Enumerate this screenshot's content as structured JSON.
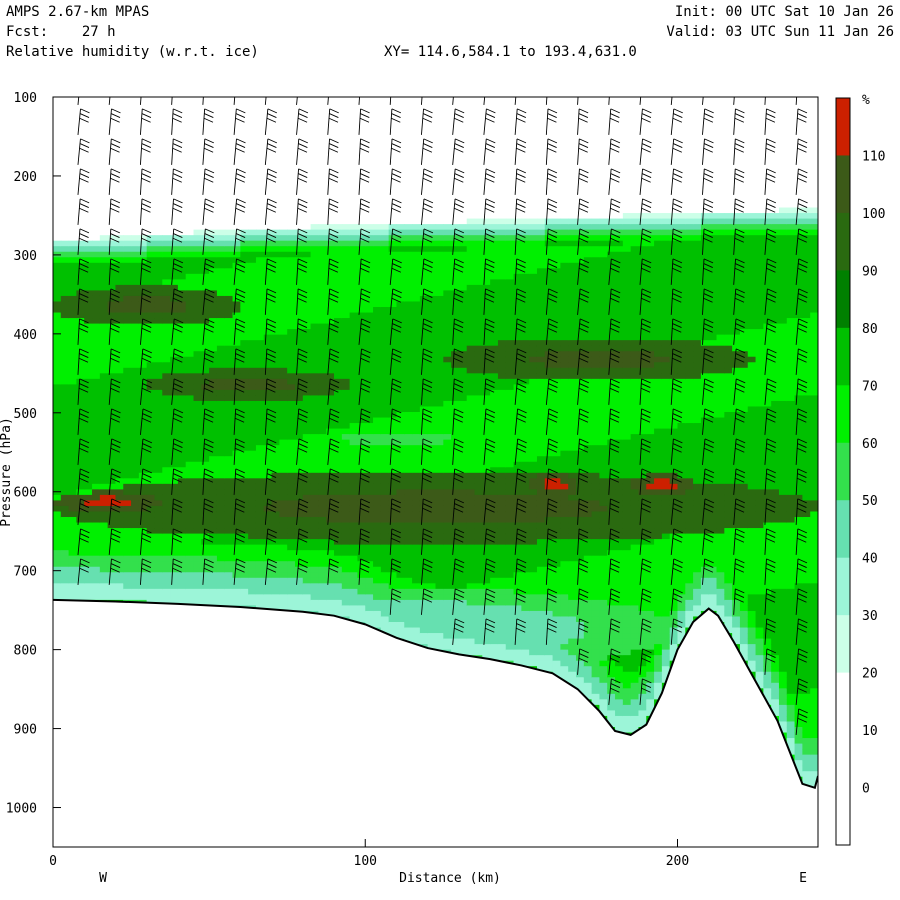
{
  "header": {
    "model": "AMPS 2.67-km MPAS",
    "forecast": "Fcst:    27 h",
    "field": "Relative humidity (w.r.t. ice)",
    "xy_range": "XY= 114.6,584.1 to 193.4,631.0",
    "init": "Init: 00 UTC Sat 10 Jan 26",
    "valid": "Valid: 03 UTC Sun 11 Jan 26"
  },
  "chart_data": {
    "type": "heatmap",
    "title": "Relative humidity (w.r.t. ice)",
    "xlabel": "Distance (km)",
    "ylabel": "Pressure (hPa)",
    "xlim": [
      0,
      245
    ],
    "ylim": [
      1050,
      100
    ],
    "x_ticks": [
      0,
      100,
      200
    ],
    "y_ticks": [
      100,
      200,
      300,
      400,
      500,
      600,
      700,
      800,
      900,
      1000
    ],
    "x_end_labels": {
      "left": "W",
      "right": "E"
    },
    "colorbar": {
      "unit": "%",
      "levels": [
        0,
        10,
        20,
        30,
        40,
        50,
        60,
        70,
        80,
        90,
        100,
        110
      ],
      "colors": [
        "#ffffff",
        "#ffffff",
        "#ffffff",
        "#ccffe8",
        "#9cf5d8",
        "#66e0b0",
        "#33e04c",
        "#00f000",
        "#00c000",
        "#008000",
        "#2a6a10",
        "#3c5a18",
        "#cc2000"
      ]
    },
    "terrain": [
      [
        0,
        737
      ],
      [
        20,
        739
      ],
      [
        40,
        742
      ],
      [
        60,
        746
      ],
      [
        80,
        752
      ],
      [
        90,
        757
      ],
      [
        100,
        768
      ],
      [
        110,
        785
      ],
      [
        120,
        798
      ],
      [
        130,
        806
      ],
      [
        140,
        812
      ],
      [
        150,
        820
      ],
      [
        160,
        830
      ],
      [
        168,
        850
      ],
      [
        175,
        878
      ],
      [
        180,
        903
      ],
      [
        185,
        908
      ],
      [
        190,
        895
      ],
      [
        195,
        855
      ],
      [
        200,
        800
      ],
      [
        205,
        765
      ],
      [
        210,
        748
      ],
      [
        213,
        757
      ],
      [
        218,
        790
      ],
      [
        225,
        840
      ],
      [
        232,
        890
      ],
      [
        237,
        940
      ],
      [
        240,
        970
      ],
      [
        244,
        975
      ],
      [
        245,
        960
      ]
    ],
    "moist_top": [
      [
        0,
        292
      ],
      [
        30,
        285
      ],
      [
        60,
        278
      ],
      [
        100,
        272
      ],
      [
        150,
        265
      ],
      [
        200,
        258
      ],
      [
        245,
        252
      ]
    ],
    "rh_features": [
      {
        "name": "upper-moist-band",
        "rh": 100,
        "x": [
          0,
          60
        ],
        "p": [
          340,
          390
        ]
      },
      {
        "name": "dry-slot",
        "rh": 50,
        "x": [
          85,
          135
        ],
        "p": [
          520,
          545
        ]
      },
      {
        "name": "mid-moist-band",
        "rh": 100,
        "x": [
          30,
          95
        ],
        "p": [
          445,
          485
        ]
      },
      {
        "name": "upper-moist-east",
        "rh": 100,
        "x": [
          125,
          225
        ],
        "p": [
          405,
          460
        ]
      },
      {
        "name": "low-moist-band",
        "rh": 100,
        "x": [
          0,
          245
        ],
        "p": [
          575,
          665
        ]
      },
      {
        "name": "super-sat-west",
        "rh": 110,
        "x": [
          0,
          35
        ],
        "p": [
          600,
          625
        ]
      },
      {
        "name": "super-sat-mid",
        "rh": 110,
        "x": [
          153,
          168
        ],
        "p": [
          575,
          610
        ]
      },
      {
        "name": "super-sat-east",
        "rh": 110,
        "x": [
          185,
          205
        ],
        "p": [
          578,
          605
        ]
      },
      {
        "name": "near-surface-dry",
        "rh": 40,
        "x": [
          0,
          200
        ],
        "p": [
          720,
          830
        ]
      }
    ]
  }
}
